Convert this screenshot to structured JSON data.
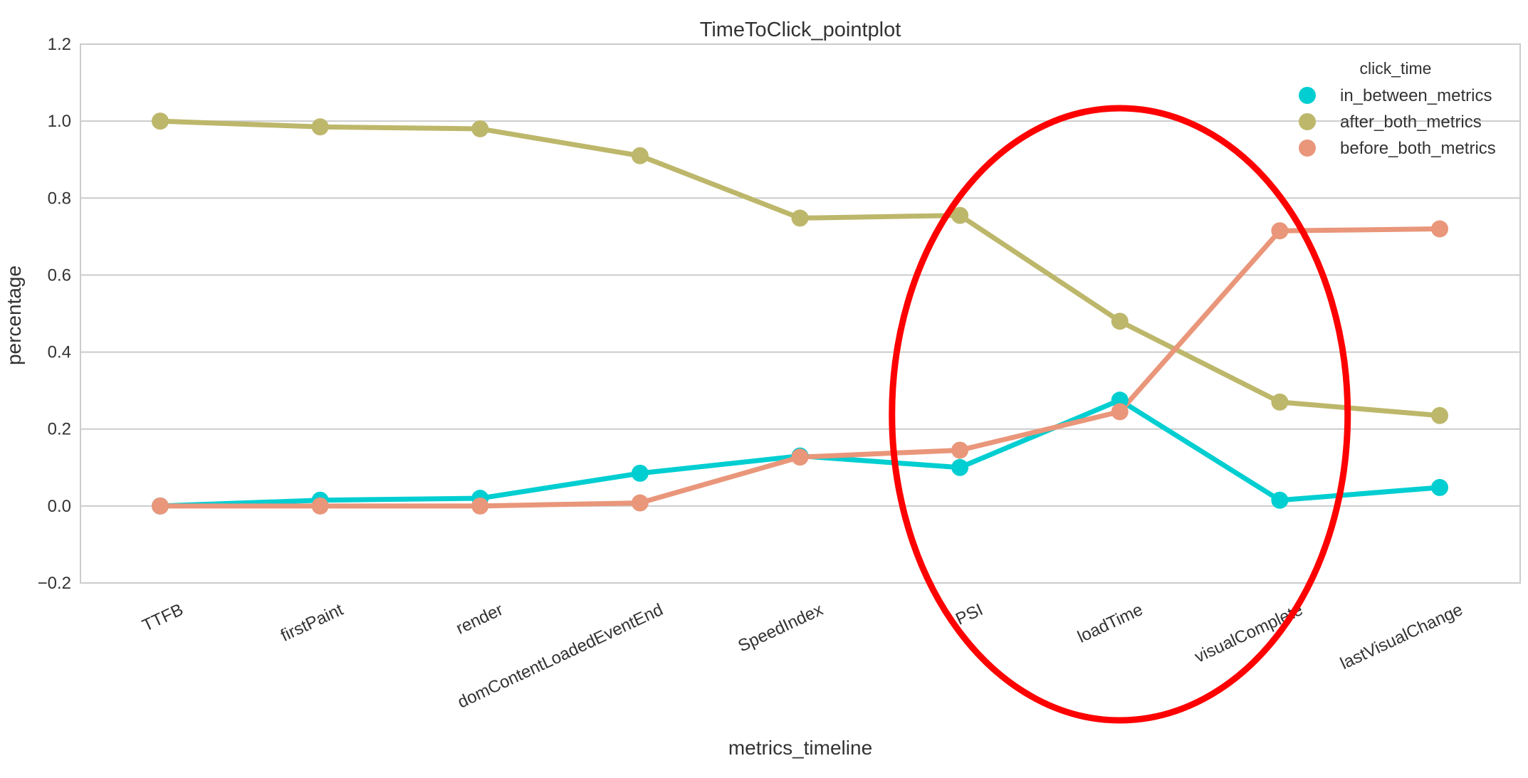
{
  "chart_data": {
    "type": "line",
    "title": "TimeToClick_pointplot",
    "xlabel": "metrics_timeline",
    "ylabel": "percentage",
    "categories": [
      "TTFB",
      "firstPaint",
      "render",
      "domContentLoadedEventEnd",
      "SpeedIndex",
      "PSI",
      "loadTime",
      "visualComplete",
      "lastVisualChange"
    ],
    "ylim": [
      -0.2,
      1.2
    ],
    "yticks": [
      -0.2,
      0.0,
      0.2,
      0.4,
      0.6,
      0.8,
      1.0,
      1.2
    ],
    "ytick_labels": [
      "−0.2",
      "0.0",
      "0.2",
      "0.4",
      "0.6",
      "0.8",
      "1.0",
      "1.2"
    ],
    "grid": true,
    "legend": {
      "title": "click_time",
      "position": "top-right"
    },
    "series": [
      {
        "name": "in_between_metrics",
        "color": "#00ced1",
        "values": [
          0.0,
          0.015,
          0.02,
          0.085,
          0.13,
          0.1,
          0.275,
          0.015,
          0.048
        ]
      },
      {
        "name": "after_both_metrics",
        "color": "#bdb76b",
        "values": [
          1.0,
          0.985,
          0.98,
          0.91,
          0.748,
          0.755,
          0.48,
          0.27,
          0.235
        ]
      },
      {
        "name": "before_both_metrics",
        "color": "#e9967a",
        "values": [
          0.0,
          0.0,
          0.0,
          0.008,
          0.127,
          0.145,
          0.245,
          0.715,
          0.72
        ]
      }
    ],
    "annotations": [
      {
        "type": "ellipse",
        "color": "#ff0000",
        "encloses": [
          "PSI",
          "loadTime",
          "visualComplete"
        ]
      }
    ]
  }
}
